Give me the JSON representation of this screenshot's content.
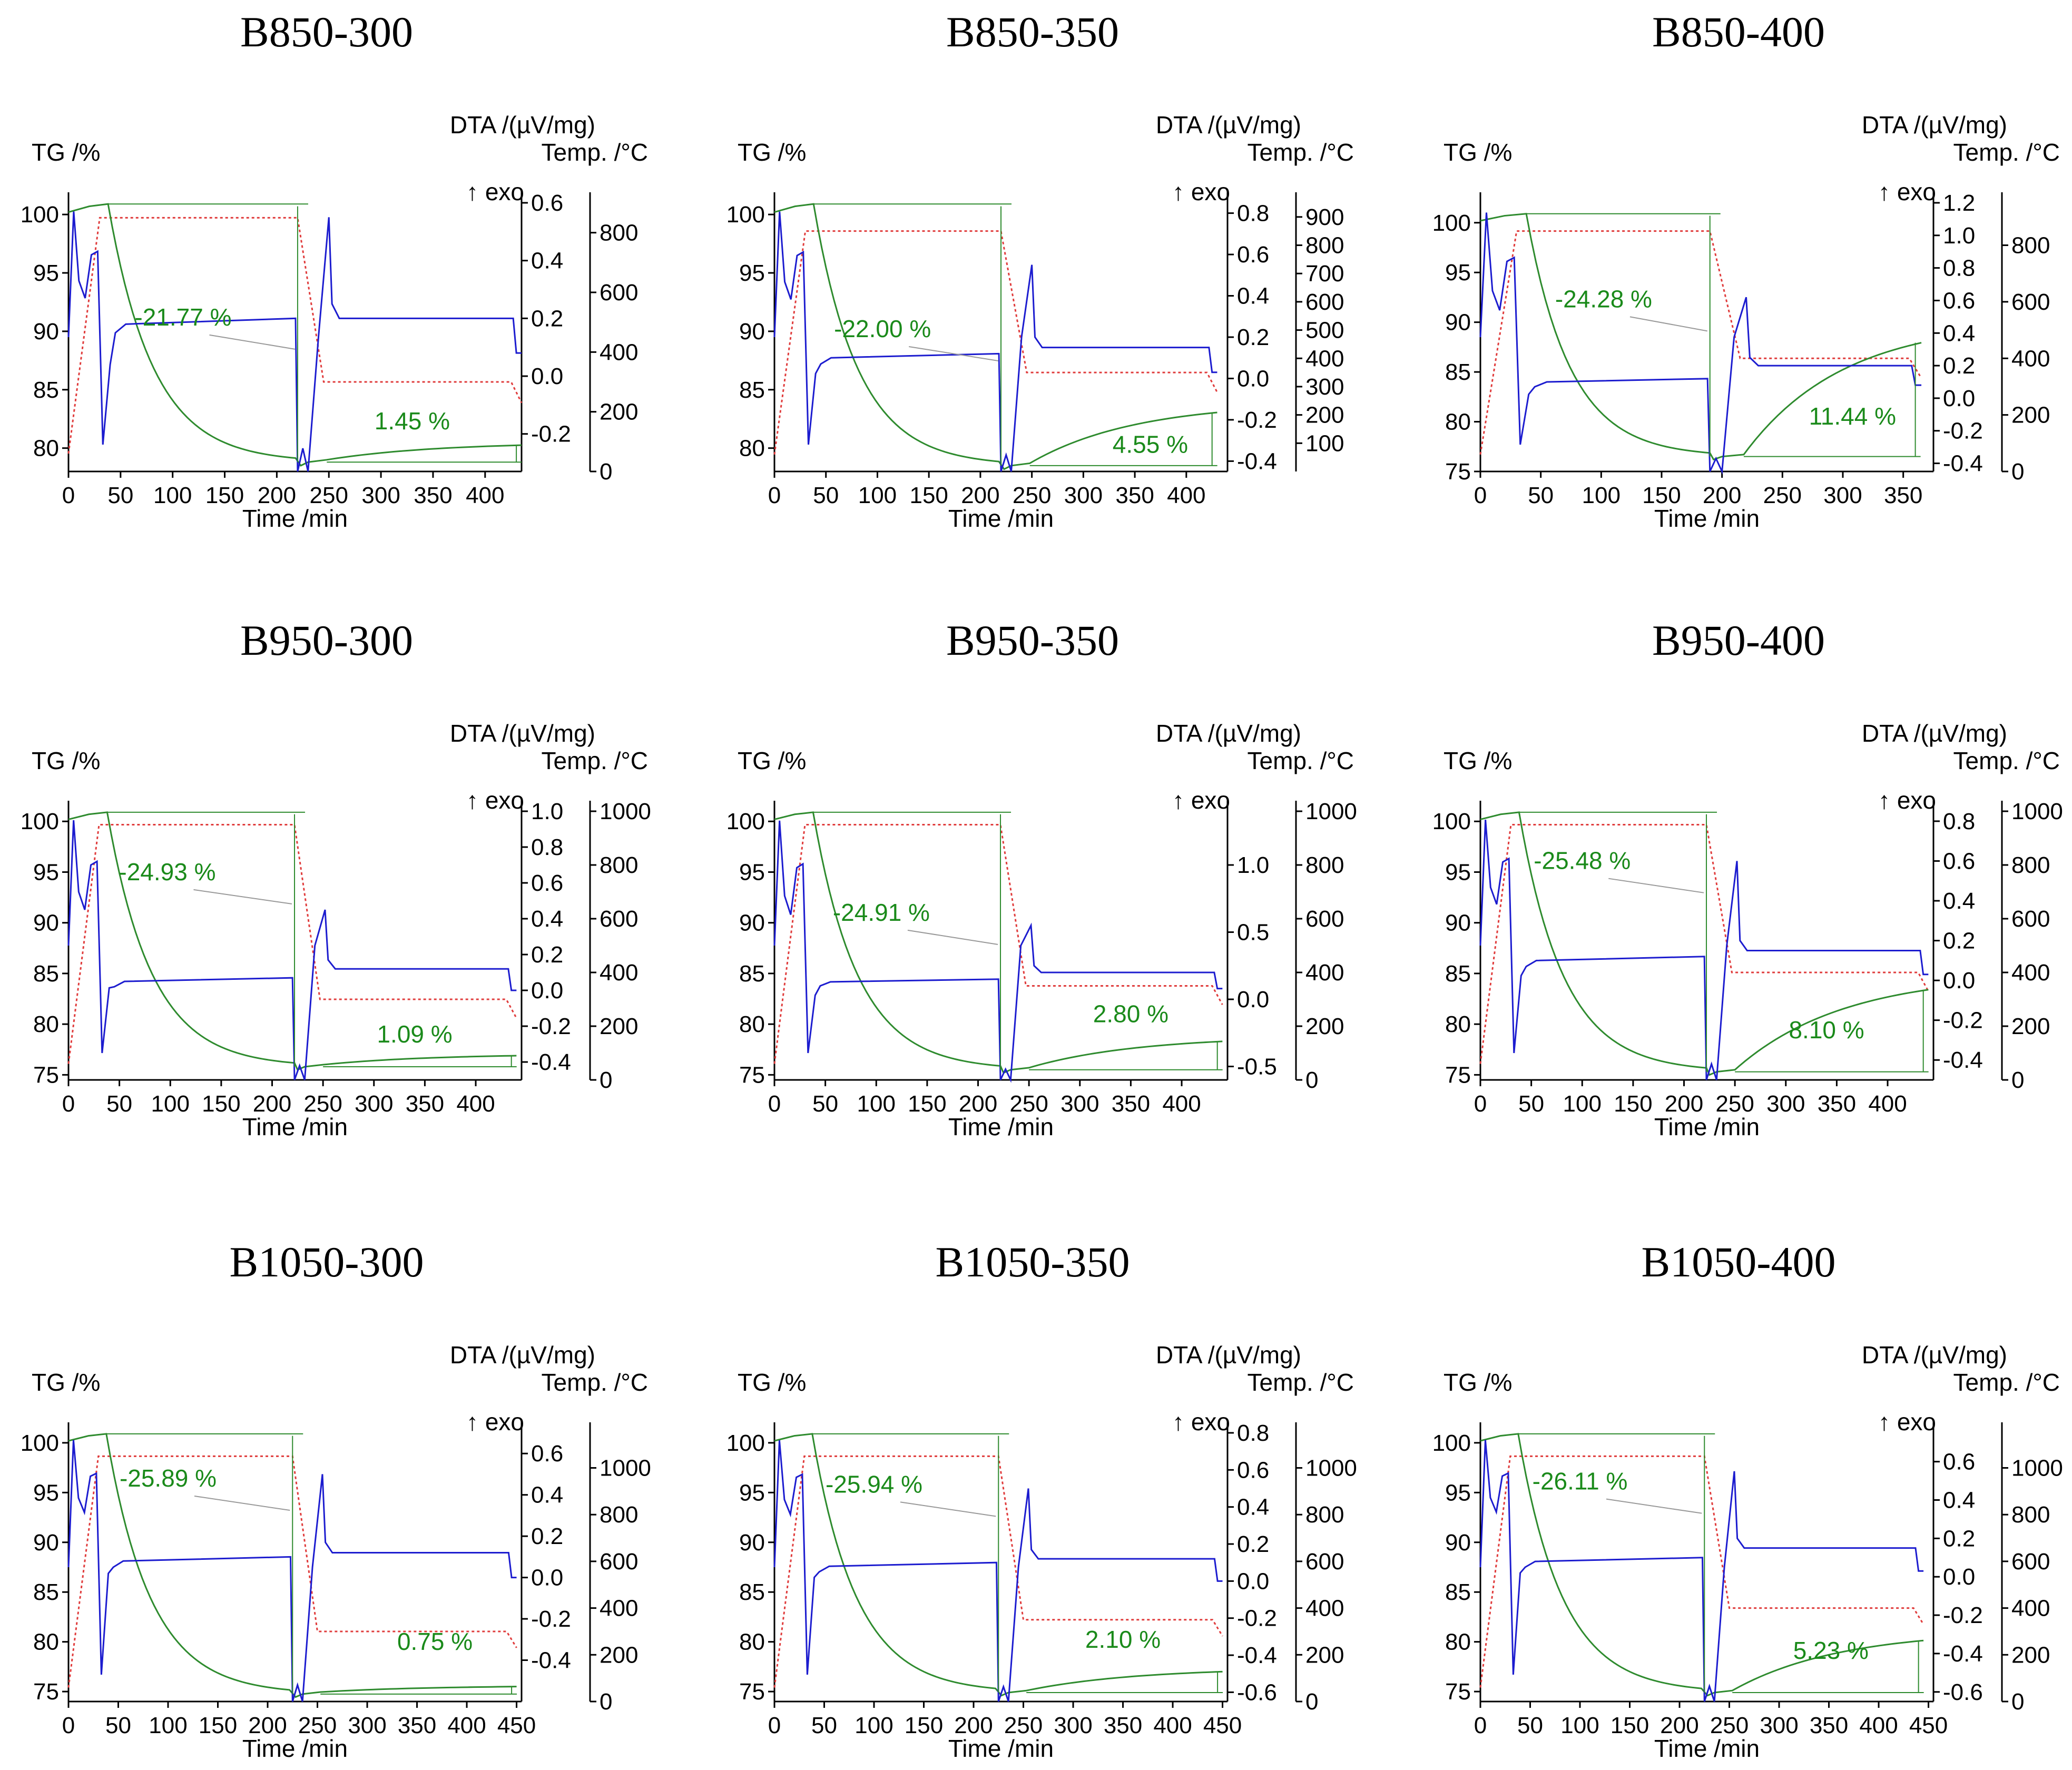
{
  "figure": {
    "description_title": "TG-DTA curves of B850-B1050 samples at 300-400 reduction temperatures"
  },
  "colors": {
    "tg": "#2e8b2e",
    "dta": "#1c1ccf",
    "temp": "#e03c3c",
    "anno": "#1a8a1a"
  },
  "common": {
    "tg_label": "TG /%",
    "dta_label": "DTA /(µV/mg)",
    "temp_label": "Temp. /°C",
    "exo_label": "↑ exo",
    "x_label": "Time /min"
  },
  "chart_data": [
    {
      "type": "line",
      "title": "B850-300",
      "xlim": [
        0,
        435
      ],
      "x_ticks": [
        "0",
        "50",
        "100",
        "150",
        "200",
        "250",
        "300",
        "350",
        "400"
      ],
      "tg_ylim": [
        78,
        101
      ],
      "tg_ticks": [
        "80",
        "85",
        "90",
        "95",
        "100"
      ],
      "dta_ylim": [
        -0.33,
        0.6
      ],
      "dta_ticks": [
        "-0.2",
        "0.0",
        "0.2",
        "0.4",
        "0.6"
      ],
      "temp_ylim": [
        0,
        900
      ],
      "temp_ticks": [
        "0",
        "200",
        "400",
        "600",
        "800"
      ],
      "hold_end": 220,
      "end_time": 435,
      "tg_min": 78.8,
      "tg_final": 80.25,
      "temp_plateau": 850,
      "temp_final": 300,
      "mass_loss": "-21.77 %",
      "mass_gain": "1.45 %",
      "loss_label_at": [
        110,
        90.5
      ],
      "gain_label_at": [
        330,
        81.6
      ],
      "dta_plateau": 0.2,
      "dta_peak": 0.55,
      "dta_after": 0.2
    },
    {
      "type": "line",
      "title": "B850-350",
      "xlim": [
        0,
        440
      ],
      "x_ticks": [
        "0",
        "50",
        "100",
        "150",
        "200",
        "250",
        "300",
        "350",
        "400"
      ],
      "tg_ylim": [
        78,
        101
      ],
      "tg_ticks": [
        "80",
        "85",
        "90",
        "95",
        "100"
      ],
      "dta_ylim": [
        -0.45,
        0.85
      ],
      "dta_ticks": [
        "-0.4",
        "-0.2",
        "0.0",
        "0.2",
        "0.4",
        "0.6",
        "0.8"
      ],
      "temp_ylim": [
        0,
        950
      ],
      "temp_ticks": [
        "100",
        "200",
        "300",
        "400",
        "500",
        "600",
        "700",
        "800",
        "900"
      ],
      "hold_end": 220,
      "end_time": 430,
      "tg_min": 78.5,
      "tg_final": 83.05,
      "temp_plateau": 850,
      "temp_final": 350,
      "mass_loss": "-22.00 %",
      "mass_gain": "4.55 %",
      "loss_label_at": [
        105,
        89.5
      ],
      "gain_label_at": [
        365,
        79.6
      ],
      "dta_plateau": 0.12,
      "dta_peak": 0.55,
      "dta_after": 0.15
    },
    {
      "type": "line",
      "title": "B850-400",
      "xlim": [
        0,
        375
      ],
      "x_ticks": [
        "0",
        "50",
        "100",
        "150",
        "200",
        "250",
        "300",
        "350"
      ],
      "tg_ylim": [
        75,
        102
      ],
      "tg_ticks": [
        "75",
        "80",
        "85",
        "90",
        "95",
        "100"
      ],
      "dta_ylim": [
        -0.45,
        1.2
      ],
      "dta_ticks": [
        "-0.4",
        "-0.2",
        "0.0",
        "0.2",
        "0.4",
        "0.6",
        "0.8",
        "1.0",
        "1.2"
      ],
      "temp_ylim": [
        0,
        950
      ],
      "temp_ticks": [
        "0",
        "200",
        "400",
        "600",
        "800"
      ],
      "hold_end": 190,
      "end_time": 365,
      "tg_min": 76.5,
      "tg_final": 87.94,
      "temp_plateau": 850,
      "temp_final": 400,
      "mass_loss": "-24.28 %",
      "mass_gain": "11.44 %",
      "loss_label_at": [
        102,
        91.5
      ],
      "gain_label_at": [
        308,
        79.7
      ],
      "dta_plateau": 0.12,
      "dta_peak": 0.62,
      "dta_after": 0.2
    },
    {
      "type": "line",
      "title": "B950-300",
      "xlim": [
        0,
        445
      ],
      "x_ticks": [
        "0",
        "50",
        "100",
        "150",
        "200",
        "250",
        "300",
        "350",
        "400"
      ],
      "tg_ylim": [
        74.5,
        101
      ],
      "tg_ticks": [
        "75",
        "80",
        "85",
        "90",
        "95",
        "100"
      ],
      "dta_ylim": [
        -0.5,
        1.0
      ],
      "dta_ticks": [
        "-0.4",
        "-0.2",
        "0.0",
        "0.2",
        "0.4",
        "0.6",
        "0.8",
        "1.0"
      ],
      "temp_ylim": [
        0,
        1000
      ],
      "temp_ticks": [
        "0",
        "200",
        "400",
        "600",
        "800",
        "1000"
      ],
      "hold_end": 222,
      "end_time": 440,
      "tg_min": 75.8,
      "tg_final": 76.89,
      "temp_plateau": 950,
      "temp_final": 300,
      "mass_loss": "-24.93 %",
      "mass_gain": "1.09 %",
      "loss_label_at": [
        97,
        94.2
      ],
      "gain_label_at": [
        340,
        78.2
      ],
      "dta_plateau": 0.07,
      "dta_peak": 0.45,
      "dta_after": 0.12
    },
    {
      "type": "line",
      "title": "B950-350",
      "xlim": [
        0,
        445
      ],
      "x_ticks": [
        "0",
        "50",
        "100",
        "150",
        "200",
        "250",
        "300",
        "350",
        "400"
      ],
      "tg_ylim": [
        74.5,
        101
      ],
      "tg_ticks": [
        "75",
        "80",
        "85",
        "90",
        "95",
        "100"
      ],
      "dta_ylim": [
        -0.6,
        1.4
      ],
      "dta_ticks": [
        "-0.5",
        "0.0",
        "0.5",
        "1.0"
      ],
      "temp_ylim": [
        0,
        1000
      ],
      "temp_ticks": [
        "0",
        "200",
        "400",
        "600",
        "800",
        "1000"
      ],
      "hold_end": 222,
      "end_time": 440,
      "tg_min": 75.5,
      "tg_final": 78.3,
      "temp_plateau": 950,
      "temp_final": 350,
      "mass_loss": "-24.91 %",
      "mass_gain": "2.80 %",
      "loss_label_at": [
        105,
        90.2
      ],
      "gain_label_at": [
        350,
        80.2
      ],
      "dta_plateau": 0.15,
      "dta_peak": 0.55,
      "dta_after": 0.2
    },
    {
      "type": "line",
      "title": "B950-400",
      "xlim": [
        0,
        445
      ],
      "x_ticks": [
        "0",
        "50",
        "100",
        "150",
        "200",
        "250",
        "300",
        "350",
        "400"
      ],
      "tg_ylim": [
        74.5,
        101
      ],
      "tg_ticks": [
        "75",
        "80",
        "85",
        "90",
        "95",
        "100"
      ],
      "dta_ylim": [
        -0.5,
        0.85
      ],
      "dta_ticks": [
        "-0.4",
        "-0.2",
        "0.0",
        "0.2",
        "0.4",
        "0.6",
        "0.8"
      ],
      "temp_ylim": [
        0,
        1000
      ],
      "temp_ticks": [
        "0",
        "200",
        "400",
        "600",
        "800",
        "1000"
      ],
      "hold_end": 222,
      "end_time": 440,
      "tg_min": 75.3,
      "tg_final": 83.4,
      "temp_plateau": 950,
      "temp_final": 400,
      "mass_loss": "-25.48 %",
      "mass_gain": "8.10 %",
      "loss_label_at": [
        100,
        95.3
      ],
      "gain_label_at": [
        340,
        78.6
      ],
      "dta_plateau": 0.12,
      "dta_peak": 0.6,
      "dta_after": 0.15
    },
    {
      "type": "line",
      "title": "B1050-300",
      "xlim": [
        0,
        455
      ],
      "x_ticks": [
        "0",
        "50",
        "100",
        "150",
        "200",
        "250",
        "300",
        "350",
        "400",
        "450"
      ],
      "tg_ylim": [
        74,
        101
      ],
      "tg_ticks": [
        "75",
        "80",
        "85",
        "90",
        "95",
        "100"
      ],
      "dta_ylim": [
        -0.6,
        0.7
      ],
      "dta_ticks": [
        "-0.4",
        "-0.2",
        "0.0",
        "0.2",
        "0.4",
        "0.6"
      ],
      "temp_ylim": [
        0,
        1150
      ],
      "temp_ticks": [
        "0",
        "200",
        "400",
        "600",
        "800",
        "1000"
      ],
      "hold_end": 225,
      "end_time": 450,
      "tg_min": 74.75,
      "tg_final": 75.5,
      "temp_plateau": 1050,
      "temp_final": 300,
      "mass_loss": "-25.89 %",
      "mass_gain": "0.75 %",
      "loss_label_at": [
        100,
        95.6
      ],
      "gain_label_at": [
        368,
        79.2
      ],
      "dta_plateau": 0.1,
      "dta_peak": 0.5,
      "dta_after": 0.12
    },
    {
      "type": "line",
      "title": "B1050-350",
      "xlim": [
        0,
        455
      ],
      "x_ticks": [
        "0",
        "50",
        "100",
        "150",
        "200",
        "250",
        "300",
        "350",
        "400",
        "450"
      ],
      "tg_ylim": [
        74,
        101
      ],
      "tg_ticks": [
        "75",
        "80",
        "85",
        "90",
        "95",
        "100"
      ],
      "dta_ylim": [
        -0.65,
        0.8
      ],
      "dta_ticks": [
        "-0.6",
        "-0.4",
        "-0.2",
        "0.0",
        "0.2",
        "0.4",
        "0.6",
        "0.8"
      ],
      "temp_ylim": [
        0,
        1150
      ],
      "temp_ticks": [
        "0",
        "200",
        "400",
        "600",
        "800",
        "1000"
      ],
      "hold_end": 225,
      "end_time": 450,
      "tg_min": 74.9,
      "tg_final": 77.0,
      "temp_plateau": 1050,
      "temp_final": 350,
      "mass_loss": "-25.94 %",
      "mass_gain": "2.10 %",
      "loss_label_at": [
        100,
        95.0
      ],
      "gain_label_at": [
        350,
        79.4
      ],
      "dta_plateau": 0.1,
      "dta_peak": 0.5,
      "dta_after": 0.12
    },
    {
      "type": "line",
      "title": "B1050-400",
      "xlim": [
        0,
        455
      ],
      "x_ticks": [
        "0",
        "50",
        "100",
        "150",
        "200",
        "250",
        "300",
        "350",
        "400",
        "450"
      ],
      "tg_ylim": [
        74,
        101
      ],
      "tg_ticks": [
        "75",
        "80",
        "85",
        "90",
        "95",
        "100"
      ],
      "dta_ylim": [
        -0.65,
        0.75
      ],
      "dta_ticks": [
        "-0.6",
        "-0.4",
        "-0.2",
        "0.0",
        "0.2",
        "0.4",
        "0.6"
      ],
      "temp_ylim": [
        0,
        1150
      ],
      "temp_ticks": [
        "0",
        "200",
        "400",
        "600",
        "800",
        "1000"
      ],
      "hold_end": 225,
      "end_time": 445,
      "tg_min": 74.9,
      "tg_final": 80.13,
      "temp_plateau": 1050,
      "temp_final": 400,
      "mass_loss": "-26.11 %",
      "mass_gain": "5.23 %",
      "loss_label_at": [
        100,
        95.3
      ],
      "gain_label_at": [
        352,
        78.3
      ],
      "dta_plateau": 0.1,
      "dta_peak": 0.55,
      "dta_after": 0.15
    }
  ]
}
